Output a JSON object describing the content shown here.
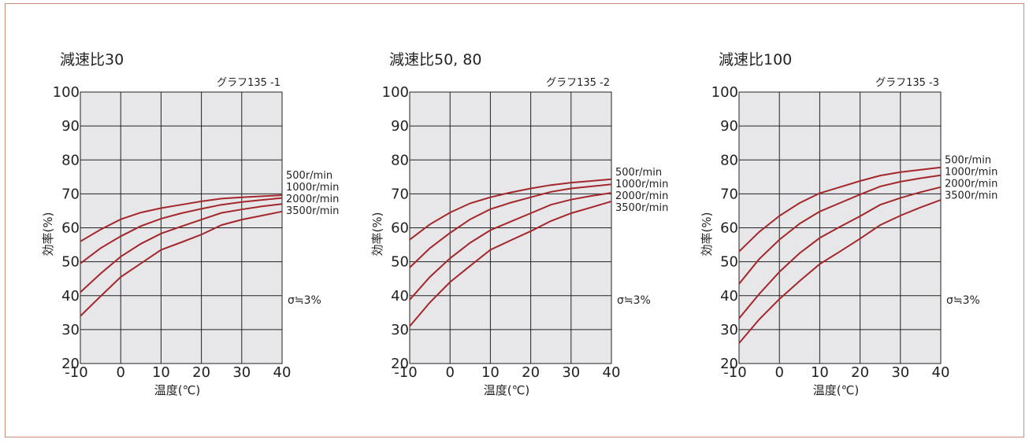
{
  "chart_data": [
    {
      "type": "line",
      "title": "減速比30",
      "graph_label": "グラフ135 -1",
      "xlabel": "温度(℃)",
      "ylabel": "効率(%)",
      "xlim": [
        -10,
        40
      ],
      "ylim": [
        20,
        100
      ],
      "xticks": [
        -10,
        0,
        10,
        20,
        30,
        40
      ],
      "yticks": [
        20,
        30,
        40,
        50,
        60,
        70,
        80,
        90,
        100
      ],
      "annotation": "σ≒3%",
      "grid": true,
      "series": [
        {
          "name": "500r/min",
          "x": [
            -10,
            -5,
            0,
            5,
            10,
            15,
            20,
            25,
            30,
            35,
            40
          ],
          "y": [
            56,
            59.5,
            62.5,
            64.5,
            65.8,
            66.8,
            67.8,
            68.6,
            69,
            69.3,
            69.6
          ]
        },
        {
          "name": "1000r/min",
          "x": [
            -10,
            -5,
            0,
            5,
            10,
            15,
            20,
            25,
            30,
            35,
            40
          ],
          "y": [
            49.5,
            54,
            57.5,
            60.5,
            62.7,
            64.3,
            65.6,
            66.8,
            67.6,
            68.2,
            68.8
          ]
        },
        {
          "name": "2000r/min",
          "x": [
            -10,
            -5,
            0,
            5,
            10,
            15,
            20,
            25,
            30,
            35,
            40
          ],
          "y": [
            41,
            46.5,
            51.5,
            55.3,
            58.3,
            60.4,
            62.4,
            64.4,
            65.4,
            66.3,
            67
          ]
        },
        {
          "name": "3500r/min",
          "x": [
            -10,
            -5,
            0,
            5,
            10,
            15,
            20,
            25,
            30,
            35,
            40
          ],
          "y": [
            34,
            39.8,
            45.5,
            49.5,
            53.5,
            55.7,
            58,
            60.8,
            62.4,
            63.6,
            64.8
          ]
        }
      ]
    },
    {
      "type": "line",
      "title": "減速比50, 80",
      "graph_label": "グラフ135 -2",
      "xlabel": "温度(℃)",
      "ylabel": "効率(%)",
      "xlim": [
        -10,
        40
      ],
      "ylim": [
        20,
        100
      ],
      "xticks": [
        -10,
        0,
        10,
        20,
        30,
        40
      ],
      "yticks": [
        20,
        30,
        40,
        50,
        60,
        70,
        80,
        90,
        100
      ],
      "annotation": "σ≒3%",
      "grid": true,
      "series": [
        {
          "name": "500r/min",
          "x": [
            -10,
            -5,
            0,
            5,
            10,
            15,
            20,
            25,
            30,
            35,
            40
          ],
          "y": [
            56.5,
            61,
            64.5,
            67.2,
            69,
            70.4,
            71.6,
            72.6,
            73.3,
            73.8,
            74.3
          ]
        },
        {
          "name": "1000r/min",
          "x": [
            -10,
            -5,
            0,
            5,
            10,
            15,
            20,
            25,
            30,
            35,
            40
          ],
          "y": [
            48.3,
            54,
            58.5,
            62.5,
            65.5,
            67.4,
            69,
            70.6,
            71.6,
            72.2,
            72.8
          ]
        },
        {
          "name": "2000r/min",
          "x": [
            -10,
            -5,
            0,
            5,
            10,
            15,
            20,
            25,
            30,
            35,
            40
          ],
          "y": [
            38.8,
            45.5,
            51,
            55.6,
            59.3,
            61.8,
            64.3,
            66.8,
            68.3,
            69.4,
            70.3
          ]
        },
        {
          "name": "3500r/min",
          "x": [
            -10,
            -5,
            0,
            5,
            10,
            15,
            20,
            25,
            30,
            35,
            40
          ],
          "y": [
            31,
            38,
            44,
            48.8,
            53.5,
            56.3,
            59,
            62,
            64.3,
            66,
            67.8
          ]
        }
      ]
    },
    {
      "type": "line",
      "title": "減速比100",
      "graph_label": "グラフ135 -3",
      "xlabel": "温度(℃)",
      "ylabel": "効率(%)",
      "xlim": [
        -10,
        40
      ],
      "ylim": [
        20,
        100
      ],
      "xticks": [
        -10,
        0,
        10,
        20,
        30,
        40
      ],
      "yticks": [
        20,
        30,
        40,
        50,
        60,
        70,
        80,
        90,
        100
      ],
      "annotation": "σ≒3%",
      "grid": true,
      "series": [
        {
          "name": "500r/min",
          "x": [
            -10,
            -5,
            0,
            5,
            10,
            15,
            20,
            25,
            30,
            35,
            40
          ],
          "y": [
            53,
            58.8,
            63.5,
            67.3,
            70.2,
            72,
            73.8,
            75.4,
            76.4,
            77.1,
            77.8
          ]
        },
        {
          "name": "1000r/min",
          "x": [
            -10,
            -5,
            0,
            5,
            10,
            15,
            20,
            25,
            30,
            35,
            40
          ],
          "y": [
            43.5,
            50.8,
            56.5,
            61.2,
            64.8,
            67.3,
            69.8,
            72.2,
            73.6,
            74.6,
            75.5
          ]
        },
        {
          "name": "2000r/min",
          "x": [
            -10,
            -5,
            0,
            5,
            10,
            15,
            20,
            25,
            30,
            35,
            40
          ],
          "y": [
            33.3,
            40.5,
            47,
            52.5,
            57,
            60.3,
            63.4,
            66.8,
            68.8,
            70.5,
            72
          ]
        },
        {
          "name": "3500r/min",
          "x": [
            -10,
            -5,
            0,
            5,
            10,
            15,
            20,
            25,
            30,
            35,
            40
          ],
          "y": [
            26,
            33,
            39,
            44.3,
            49.3,
            53,
            56.8,
            60.8,
            63.6,
            66,
            68.2
          ]
        }
      ]
    }
  ]
}
